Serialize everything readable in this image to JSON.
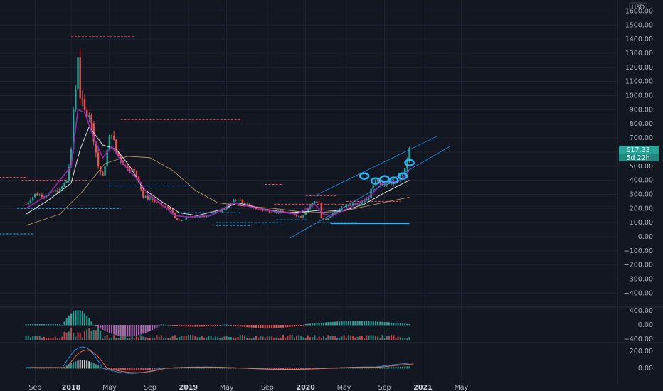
{
  "chart_data": {
    "type": "candlestick",
    "currency_label": "USD",
    "price_axis_ticks": [
      1600,
      1500,
      1400,
      1300,
      1200,
      1100,
      1000,
      900,
      800,
      700,
      600,
      500,
      400,
      300,
      200,
      100,
      0,
      -100,
      -200,
      -300,
      -400
    ],
    "price_axis_labels": [
      "1600.00",
      "1500.00",
      "1400.00",
      "1300.00",
      "1200.00",
      "1100.00",
      "1000.00",
      "900.00",
      "800.00",
      "700.00",
      "600.00",
      "500.00",
      "400.00",
      "300.00",
      "200.00",
      "100.00",
      "0.00",
      "−100.00",
      "−200.00",
      "−300.00",
      "−400.00"
    ],
    "ylim": [
      -460,
      1660
    ],
    "last_price_label": "617.33",
    "countdown_label": "5d 22h",
    "time_axis_labels": [
      {
        "label": "Sep",
        "week": -16,
        "bold": false
      },
      {
        "label": "2018",
        "week": 0,
        "bold": true
      },
      {
        "label": "May",
        "week": 17,
        "bold": false
      },
      {
        "label": "Sep",
        "week": 35,
        "bold": false
      },
      {
        "label": "2019",
        "week": 52,
        "bold": true
      },
      {
        "label": "May",
        "week": 69,
        "bold": false
      },
      {
        "label": "Sep",
        "week": 87,
        "bold": false
      },
      {
        "label": "2020",
        "week": 104,
        "bold": true
      },
      {
        "label": "May",
        "week": 121,
        "bold": false
      },
      {
        "label": "Sep",
        "week": 139,
        "bold": false
      },
      {
        "label": "2021",
        "week": 156,
        "bold": true
      },
      {
        "label": "May",
        "week": 173,
        "bold": false
      }
    ],
    "weekly_close": [
      [
        -20,
        230
      ],
      [
        -16,
        300
      ],
      [
        -12,
        290
      ],
      [
        -8,
        320
      ],
      [
        -5,
        330
      ],
      [
        -2,
        400
      ],
      [
        0,
        600
      ],
      [
        1,
        900
      ],
      [
        2,
        1050
      ],
      [
        3,
        1300
      ],
      [
        4,
        1000
      ],
      [
        6,
        880
      ],
      [
        8,
        880
      ],
      [
        10,
        700
      ],
      [
        12,
        500
      ],
      [
        14,
        420
      ],
      [
        17,
        700
      ],
      [
        18,
        740
      ],
      [
        20,
        600
      ],
      [
        24,
        500
      ],
      [
        28,
        460
      ],
      [
        30,
        400
      ],
      [
        32,
        280
      ],
      [
        35,
        270
      ],
      [
        40,
        220
      ],
      [
        44,
        200
      ],
      [
        46,
        130
      ],
      [
        48,
        110
      ],
      [
        52,
        140
      ],
      [
        58,
        140
      ],
      [
        64,
        170
      ],
      [
        68,
        200
      ],
      [
        72,
        250
      ],
      [
        74,
        270
      ],
      [
        76,
        240
      ],
      [
        80,
        210
      ],
      [
        84,
        190
      ],
      [
        88,
        180
      ],
      [
        92,
        175
      ],
      [
        96,
        170
      ],
      [
        100,
        150
      ],
      [
        102,
        140
      ],
      [
        104,
        180
      ],
      [
        106,
        220
      ],
      [
        108,
        250
      ],
      [
        110,
        240
      ],
      [
        111,
        130
      ],
      [
        113,
        120
      ],
      [
        116,
        160
      ],
      [
        120,
        200
      ],
      [
        124,
        230
      ],
      [
        128,
        240
      ],
      [
        132,
        280
      ],
      [
        134,
        380
      ],
      [
        136,
        400
      ],
      [
        138,
        380
      ],
      [
        140,
        360
      ],
      [
        142,
        390
      ],
      [
        144,
        380
      ],
      [
        146,
        430
      ],
      [
        148,
        470
      ],
      [
        150,
        617
      ]
    ],
    "ma_fast": [
      [
        -20,
        200
      ],
      [
        -10,
        300
      ],
      [
        0,
        500
      ],
      [
        3,
        900
      ],
      [
        6,
        880
      ],
      [
        10,
        700
      ],
      [
        14,
        560
      ],
      [
        18,
        640
      ],
      [
        22,
        540
      ],
      [
        26,
        460
      ],
      [
        30,
        400
      ],
      [
        34,
        300
      ],
      [
        40,
        230
      ],
      [
        46,
        150
      ],
      [
        52,
        140
      ],
      [
        62,
        150
      ],
      [
        72,
        240
      ],
      [
        80,
        210
      ],
      [
        90,
        180
      ],
      [
        100,
        160
      ],
      [
        108,
        230
      ],
      [
        112,
        160
      ],
      [
        116,
        150
      ],
      [
        124,
        210
      ],
      [
        132,
        280
      ],
      [
        138,
        380
      ],
      [
        146,
        400
      ],
      [
        150,
        470
      ]
    ],
    "ma_mid": [
      [
        -20,
        160
      ],
      [
        -10,
        260
      ],
      [
        0,
        380
      ],
      [
        4,
        620
      ],
      [
        8,
        780
      ],
      [
        14,
        650
      ],
      [
        20,
        620
      ],
      [
        26,
        500
      ],
      [
        32,
        340
      ],
      [
        40,
        250
      ],
      [
        48,
        170
      ],
      [
        56,
        150
      ],
      [
        66,
        190
      ],
      [
        74,
        240
      ],
      [
        84,
        200
      ],
      [
        96,
        170
      ],
      [
        106,
        180
      ],
      [
        112,
        190
      ],
      [
        120,
        180
      ],
      [
        130,
        230
      ],
      [
        140,
        320
      ],
      [
        150,
        400
      ]
    ],
    "ma_slow": [
      [
        -20,
        80
      ],
      [
        -5,
        160
      ],
      [
        5,
        320
      ],
      [
        15,
        520
      ],
      [
        25,
        570
      ],
      [
        35,
        560
      ],
      [
        45,
        470
      ],
      [
        55,
        330
      ],
      [
        65,
        240
      ],
      [
        75,
        220
      ],
      [
        90,
        200
      ],
      [
        105,
        170
      ],
      [
        120,
        180
      ],
      [
        135,
        230
      ],
      [
        150,
        280
      ]
    ],
    "histogram_axis_labels": [
      "400.00",
      "0.00",
      "−400.00"
    ],
    "histogram_axis_values": [
      400,
      0,
      -400
    ],
    "oscillator_axis_labels": [
      "200.00",
      "0.00"
    ],
    "oscillator_axis_values": [
      200,
      0
    ],
    "colors": {
      "background": "#131722",
      "grid": "#1f2433",
      "bull": "#26a69a",
      "bear": "#ef5350",
      "ma_fast": "#9c27b0",
      "ma_mid": "#e0e0e0",
      "ma_slow": "#c8a064",
      "trend": "#2196f3",
      "support": "#29b6f6",
      "resistance": "#ff5252"
    }
  }
}
